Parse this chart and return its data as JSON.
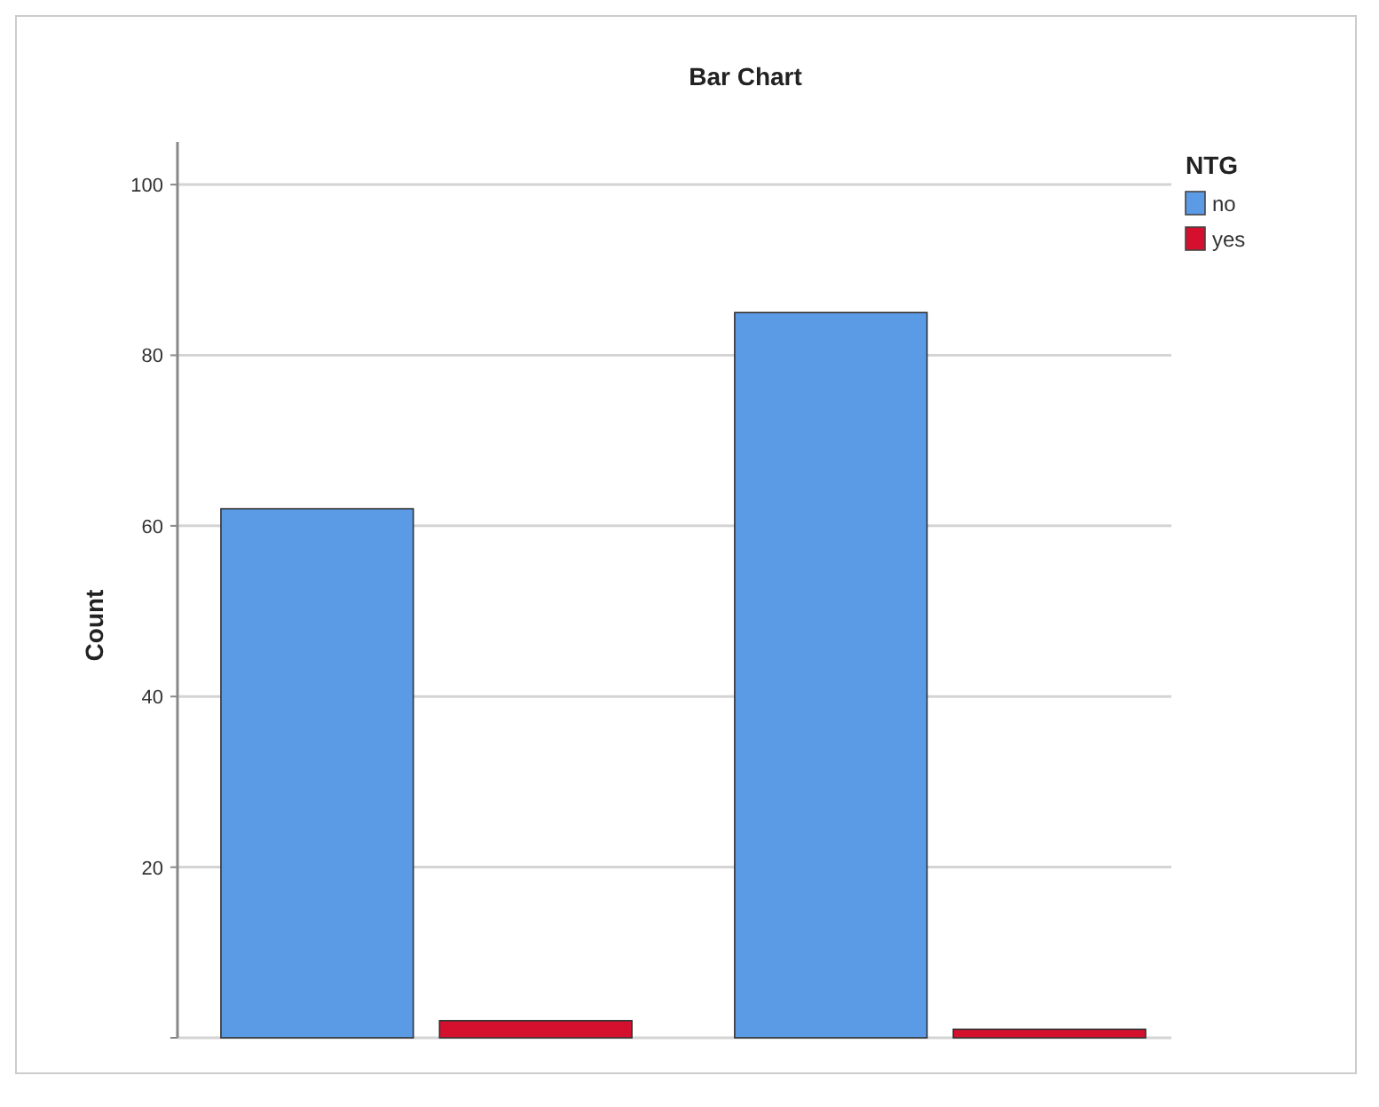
{
  "chart_data": {
    "type": "bar",
    "title": "Bar Chart",
    "ylabel": "Count",
    "legend_title": "NTG",
    "categories": [
      null,
      null
    ],
    "series": [
      {
        "name": "no",
        "color": "#5b9be6",
        "values": [
          62,
          85
        ]
      },
      {
        "name": "yes",
        "color": "#d5102f",
        "values": [
          2,
          1
        ]
      }
    ],
    "ylim": [
      0,
      105
    ],
    "yticks": [
      {
        "value": 0,
        "label": null
      },
      20,
      40,
      60,
      80,
      100
    ],
    "grid": "y",
    "legend": "top right"
  }
}
